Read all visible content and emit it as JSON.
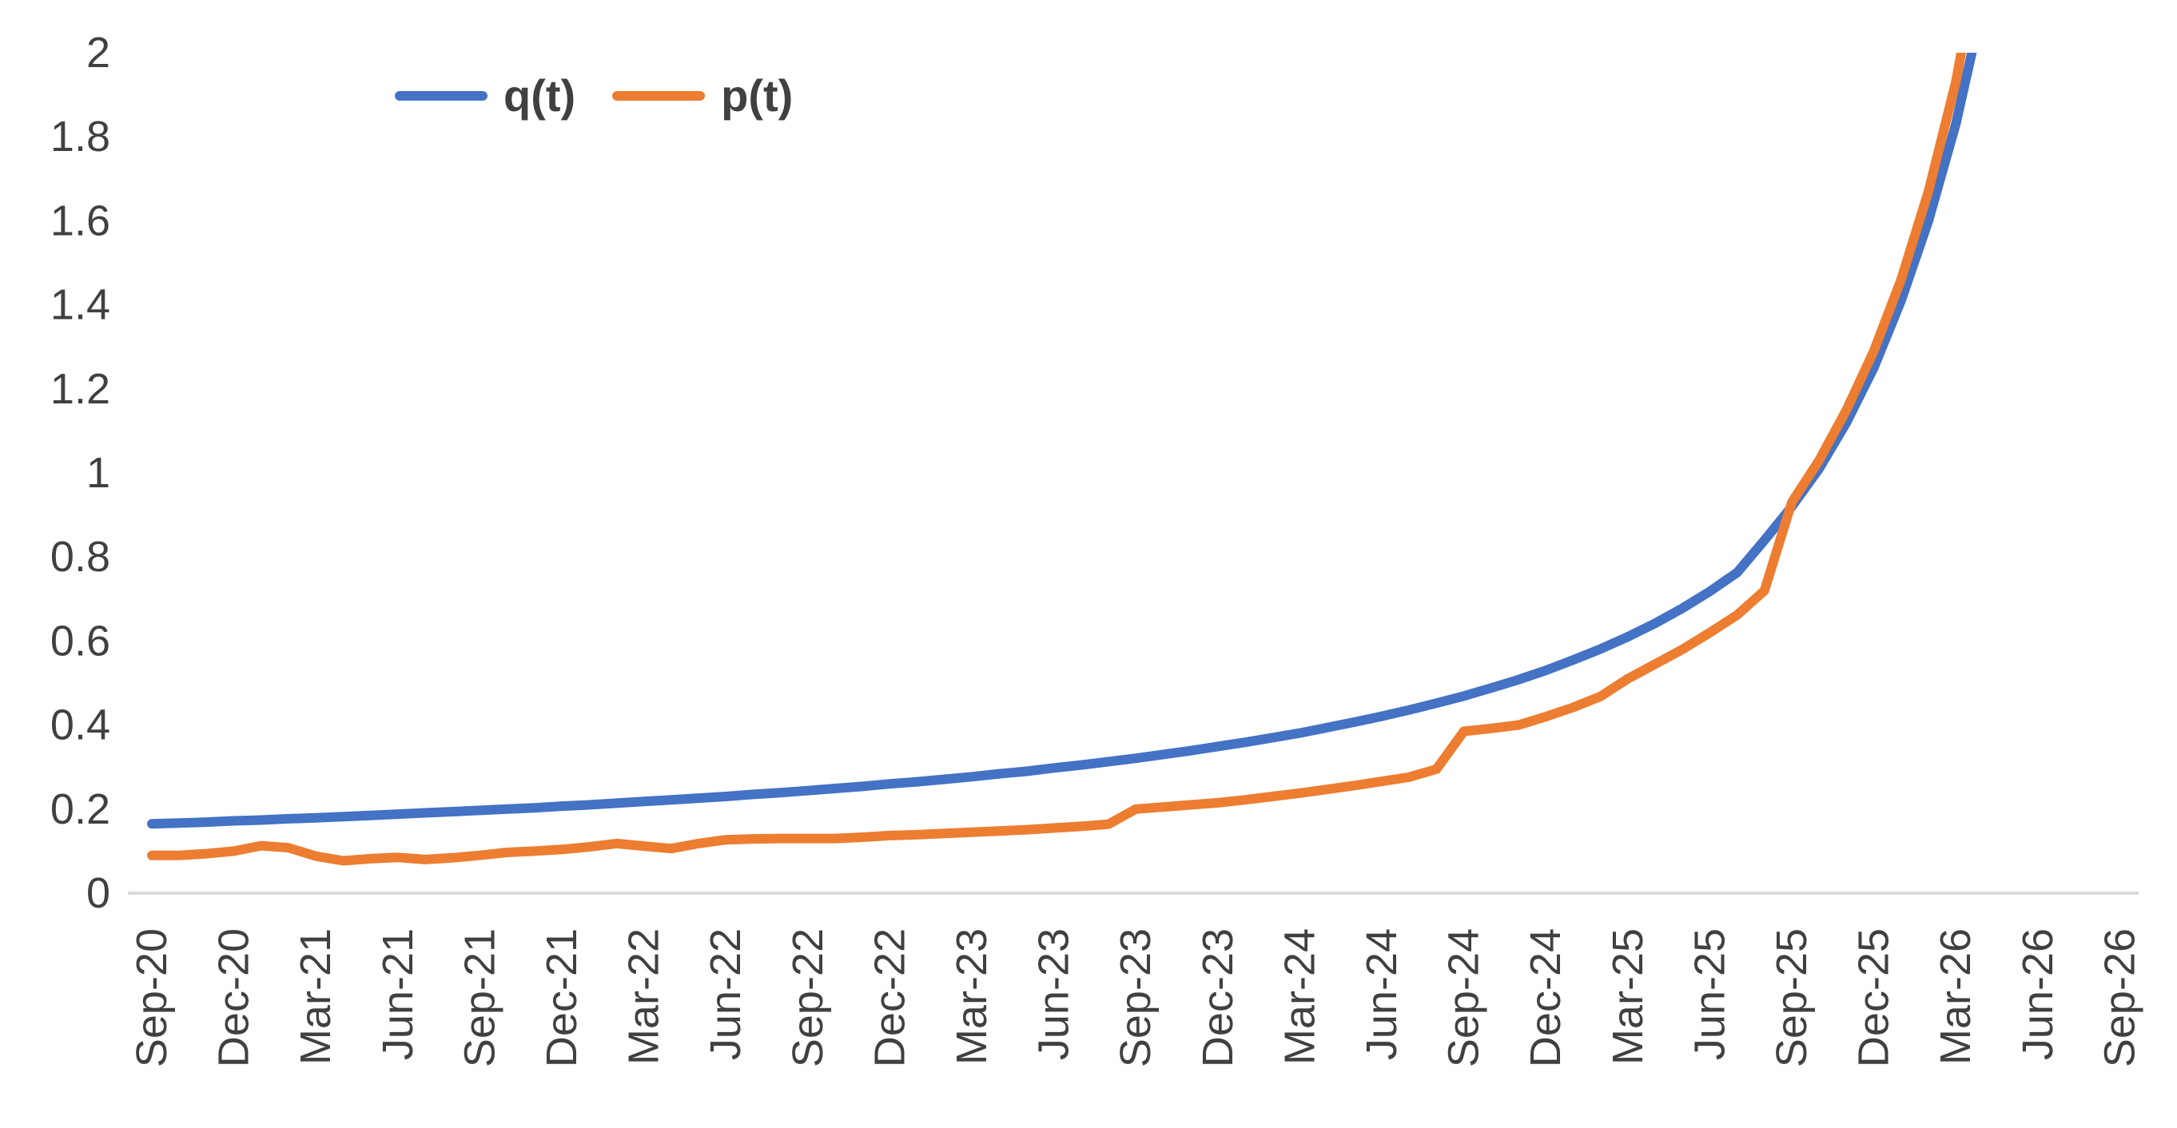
{
  "chart": {
    "background_color": "#FFFFFF",
    "axis_line_color": "#D9D9D9",
    "label_color": "#404040"
  },
  "chart_data": {
    "type": "line",
    "title": "",
    "xlabel": "",
    "ylabel": "",
    "ylim": [
      0,
      2
    ],
    "grid": false,
    "legend_position": "top-inside",
    "x_start": "Sep-20",
    "x_step_months": 1,
    "x_tick_every_n_points": 3,
    "x_tick_labels": [
      "Sep-20",
      "Dec-20",
      "Mar-21",
      "Jun-21",
      "Sep-21",
      "Dec-21",
      "Mar-22",
      "Jun-22",
      "Sep-22",
      "Dec-22",
      "Mar-23",
      "Jun-23",
      "Sep-23",
      "Dec-23",
      "Mar-24",
      "Jun-24",
      "Sep-24",
      "Dec-24",
      "Mar-25",
      "Jun-25",
      "Sep-25",
      "Dec-25",
      "Mar-26",
      "Jun-26",
      "Sep-26"
    ],
    "y_tick_labels": [
      "0",
      "0.2",
      "0.4",
      "0.6",
      "0.8",
      "1",
      "1.2",
      "1.4",
      "1.6",
      "1.8",
      "2"
    ],
    "y_tick_values": [
      0,
      0.2,
      0.4,
      0.6,
      0.8,
      1,
      1.2,
      1.4,
      1.6,
      1.8,
      2
    ],
    "series": [
      {
        "name": "q(t)",
        "color": "#4472C4",
        "values": [
          0.165,
          0.167,
          0.169,
          0.172,
          0.174,
          0.177,
          0.179,
          0.182,
          0.185,
          0.188,
          0.191,
          0.194,
          0.197,
          0.2,
          0.203,
          0.207,
          0.21,
          0.214,
          0.218,
          0.222,
          0.226,
          0.23,
          0.235,
          0.239,
          0.244,
          0.249,
          0.254,
          0.26,
          0.265,
          0.271,
          0.277,
          0.284,
          0.29,
          0.298,
          0.305,
          0.313,
          0.321,
          0.33,
          0.339,
          0.349,
          0.359,
          0.37,
          0.381,
          0.394,
          0.407,
          0.421,
          0.436,
          0.452,
          0.469,
          0.488,
          0.508,
          0.53,
          0.555,
          0.581,
          0.61,
          0.642,
          0.678,
          0.718,
          0.763,
          0.84,
          0.92,
          1.01,
          1.12,
          1.25,
          1.41,
          1.6,
          1.83,
          2.12
        ]
      },
      {
        "name": "p(t)",
        "color": "#ED7D31",
        "values": [
          0.09,
          0.09,
          0.094,
          0.1,
          0.113,
          0.108,
          0.088,
          0.077,
          0.082,
          0.085,
          0.08,
          0.084,
          0.09,
          0.097,
          0.1,
          0.104,
          0.11,
          0.118,
          0.112,
          0.106,
          0.118,
          0.127,
          0.129,
          0.13,
          0.13,
          0.13,
          0.133,
          0.137,
          0.139,
          0.142,
          0.145,
          0.148,
          0.151,
          0.155,
          0.159,
          0.164,
          0.2,
          0.205,
          0.21,
          0.215,
          0.222,
          0.23,
          0.238,
          0.247,
          0.256,
          0.266,
          0.276,
          0.295,
          0.385,
          0.392,
          0.4,
          0.42,
          0.442,
          0.468,
          0.51,
          0.545,
          0.58,
          0.62,
          0.662,
          0.72,
          0.93,
          1.03,
          1.15,
          1.29,
          1.46,
          1.67,
          1.93,
          2.28
        ]
      }
    ]
  }
}
